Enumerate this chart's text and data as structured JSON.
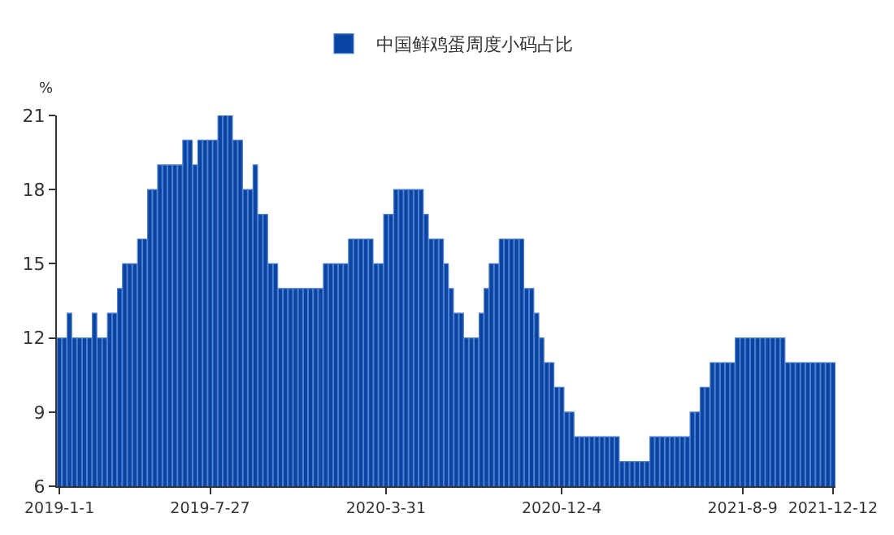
{
  "chart_data": {
    "type": "bar",
    "ylabel": "%",
    "legend": "top",
    "categories": [
      "2019-1-1",
      null,
      null,
      null,
      null,
      null,
      null,
      null,
      null,
      null,
      null,
      null,
      null,
      null,
      null,
      null,
      null,
      null,
      null,
      null,
      null,
      null,
      null,
      null,
      null,
      null,
      null,
      null,
      null,
      null,
      "2019-7-27",
      null,
      null,
      null,
      null,
      null,
      null,
      null,
      null,
      null,
      null,
      null,
      null,
      null,
      null,
      null,
      null,
      null,
      null,
      null,
      null,
      null,
      null,
      null,
      null,
      null,
      null,
      null,
      null,
      null,
      null,
      null,
      null,
      null,
      null,
      "2020-3-31",
      null,
      null,
      null,
      null,
      null,
      null,
      null,
      null,
      null,
      null,
      null,
      null,
      null,
      null,
      null,
      null,
      null,
      null,
      null,
      null,
      null,
      null,
      null,
      null,
      null,
      null,
      null,
      null,
      null,
      null,
      null,
      null,
      null,
      null,
      "2020-12-4",
      null,
      null,
      null,
      null,
      null,
      null,
      null,
      null,
      null,
      null,
      null,
      null,
      null,
      null,
      null,
      null,
      null,
      null,
      null,
      null,
      null,
      null,
      null,
      null,
      null,
      null,
      null,
      null,
      null,
      null,
      null,
      null,
      null,
      null,
      null,
      "2021-8-9",
      null,
      null,
      null,
      null,
      null,
      null,
      null,
      null,
      null,
      null,
      null,
      null,
      null,
      null,
      null,
      null,
      null,
      "2021-12-12"
    ],
    "series": [
      {
        "name": "中国鲜鸡蛋周度小码占比",
        "color": "#0b45a3",
        "values": [
          12,
          12,
          13,
          12,
          12,
          12,
          12,
          13,
          12,
          12,
          13,
          13,
          14,
          15,
          15,
          15,
          16,
          16,
          18,
          18,
          19,
          19,
          19,
          19,
          19,
          20,
          20,
          19,
          20,
          20,
          20,
          20,
          21,
          21,
          21,
          20,
          20,
          18,
          18,
          19,
          17,
          17,
          15,
          15,
          14,
          14,
          14,
          14,
          14,
          14,
          14,
          14,
          14,
          15,
          15,
          15,
          15,
          15,
          16,
          16,
          16,
          16,
          16,
          15,
          15,
          17,
          17,
          18,
          18,
          18,
          18,
          18,
          18,
          17,
          16,
          16,
          16,
          15,
          14,
          13,
          13,
          12,
          12,
          12,
          13,
          14,
          15,
          15,
          16,
          16,
          16,
          16,
          16,
          14,
          14,
          13,
          12,
          11,
          11,
          10,
          10,
          9,
          9,
          8,
          8,
          8,
          8,
          8,
          8,
          8,
          8,
          8,
          7,
          7,
          7,
          7,
          7,
          7,
          8,
          8,
          8,
          8,
          8,
          8,
          8,
          8,
          9,
          9,
          10,
          10,
          11,
          11,
          11,
          11,
          11,
          12,
          12,
          12,
          12,
          12,
          12,
          12,
          12,
          12,
          12,
          11,
          11,
          11,
          11,
          11,
          11,
          11,
          11,
          11,
          11
        ]
      }
    ],
    "ylim": [
      6,
      21
    ],
    "yticks": [
      6,
      9,
      12,
      15,
      18,
      21
    ],
    "grid": false
  }
}
